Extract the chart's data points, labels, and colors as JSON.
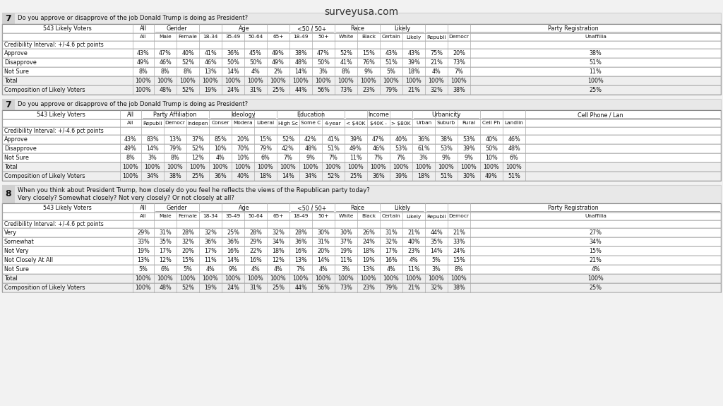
{
  "title": "surveyusa.com",
  "bg_color": "#f2f2f2",
  "q7_top_question": "Do you approve or disapprove of the job Donald Trump is doing as President?",
  "q7_top_data": {
    "headers_group": [
      "543 Likely Voters",
      "All",
      "Gender",
      "Age",
      "<50 / 50+",
      "Race",
      "Likely",
      "Party Registration"
    ],
    "headers_sub": [
      "",
      "All",
      "Male",
      "Female",
      "18-34",
      "35-49",
      "50-64",
      "65+",
      "18-49",
      "50+",
      "White",
      "Black",
      "Certain",
      "Likely",
      "Republi",
      "Democr",
      "Unaffilia"
    ],
    "credibility": "Credibility Interval: +/-4.6 pct points",
    "rows": {
      "Approve": [
        "43%",
        "47%",
        "40%",
        "41%",
        "36%",
        "45%",
        "49%",
        "38%",
        "47%",
        "52%",
        "15%",
        "43%",
        "43%",
        "75%",
        "20%",
        "38%"
      ],
      "Disapprove": [
        "49%",
        "46%",
        "52%",
        "46%",
        "50%",
        "50%",
        "49%",
        "48%",
        "50%",
        "41%",
        "76%",
        "51%",
        "39%",
        "21%",
        "73%",
        "51%"
      ],
      "Not Sure": [
        "8%",
        "8%",
        "8%",
        "13%",
        "14%",
        "4%",
        "2%",
        "14%",
        "3%",
        "8%",
        "9%",
        "5%",
        "18%",
        "4%",
        "7%",
        "11%"
      ],
      "Total": [
        "100%",
        "100%",
        "100%",
        "100%",
        "100%",
        "100%",
        "100%",
        "100%",
        "100%",
        "100%",
        "100%",
        "100%",
        "100%",
        "100%",
        "100%",
        "100%"
      ],
      "Composition of Likely Voters": [
        "100%",
        "48%",
        "52%",
        "19%",
        "24%",
        "31%",
        "25%",
        "44%",
        "56%",
        "73%",
        "23%",
        "79%",
        "21%",
        "32%",
        "38%",
        "25%"
      ]
    }
  },
  "q7_bot_question": "Do you approve or disapprove of the job Donald Trump is doing as President?",
  "q7_bot_data": {
    "headers_group": [
      "543 Likely Voters",
      "All",
      "Party Affiliation",
      "Ideology",
      "Education",
      "Income",
      "Urbanicity",
      "Cell Phone / Lan"
    ],
    "headers_sub": [
      "",
      "All",
      "Republi",
      "Democr",
      "Indepen",
      "Conser",
      "Modera",
      "Liberal",
      "High Sc",
      "Some C",
      "4-year",
      "< $40K",
      "$40K -",
      "> $80K",
      "Urban",
      "Suburb",
      "Rural",
      "Cell Ph",
      "Landlin"
    ],
    "credibility": "Credibility Interval: +/-4.6 pct points",
    "rows": {
      "Approve": [
        "43%",
        "83%",
        "13%",
        "37%",
        "85%",
        "20%",
        "15%",
        "52%",
        "42%",
        "41%",
        "39%",
        "47%",
        "40%",
        "36%",
        "38%",
        "53%",
        "40%",
        "46%"
      ],
      "Disapprove": [
        "49%",
        "14%",
        "79%",
        "52%",
        "10%",
        "70%",
        "79%",
        "42%",
        "48%",
        "51%",
        "49%",
        "46%",
        "53%",
        "61%",
        "53%",
        "39%",
        "50%",
        "48%"
      ],
      "Not Sure": [
        "8%",
        "3%",
        "8%",
        "12%",
        "4%",
        "10%",
        "6%",
        "7%",
        "9%",
        "7%",
        "11%",
        "7%",
        "7%",
        "3%",
        "9%",
        "9%",
        "10%",
        "6%"
      ],
      "Total": [
        "100%",
        "100%",
        "100%",
        "100%",
        "100%",
        "100%",
        "100%",
        "100%",
        "100%",
        "100%",
        "100%",
        "100%",
        "100%",
        "100%",
        "100%",
        "100%",
        "100%",
        "100%"
      ],
      "Composition of Likely Voters": [
        "100%",
        "34%",
        "38%",
        "25%",
        "36%",
        "40%",
        "18%",
        "14%",
        "34%",
        "52%",
        "25%",
        "36%",
        "39%",
        "18%",
        "51%",
        "30%",
        "49%",
        "51%"
      ]
    }
  },
  "q8_question": "When you think about President Trump, how closely do you feel he reflects the views of the Republican party today? Very closely? Somewhat closely? Not very closely? Or not closely at all?",
  "q8_data": {
    "headers_group": [
      "543 Likely Voters",
      "All",
      "Gender",
      "Age",
      "<50 / 50+",
      "Race",
      "Likely",
      "Party Registration"
    ],
    "headers_sub": [
      "",
      "All",
      "Male",
      "Female",
      "18-34",
      "35-49",
      "50-64",
      "65+",
      "18-49",
      "50+",
      "White",
      "Black",
      "Certain",
      "Likely",
      "Republi",
      "Democr",
      "Unaffilia"
    ],
    "credibility": "Credibility Interval: +/-4.6 pct points",
    "rows": {
      "Very": [
        "29%",
        "31%",
        "28%",
        "32%",
        "25%",
        "28%",
        "32%",
        "28%",
        "30%",
        "30%",
        "26%",
        "31%",
        "21%",
        "44%",
        "21%",
        "27%"
      ],
      "Somewhat": [
        "33%",
        "35%",
        "32%",
        "36%",
        "36%",
        "29%",
        "34%",
        "36%",
        "31%",
        "37%",
        "24%",
        "32%",
        "40%",
        "35%",
        "33%",
        "34%"
      ],
      "Not Very": [
        "19%",
        "17%",
        "20%",
        "17%",
        "16%",
        "22%",
        "18%",
        "16%",
        "20%",
        "19%",
        "18%",
        "17%",
        "23%",
        "14%",
        "24%",
        "15%"
      ],
      "Not Closely At All": [
        "13%",
        "12%",
        "15%",
        "11%",
        "14%",
        "16%",
        "12%",
        "13%",
        "14%",
        "11%",
        "19%",
        "16%",
        "4%",
        "5%",
        "15%",
        "21%"
      ],
      "Not Sure": [
        "5%",
        "6%",
        "5%",
        "4%",
        "9%",
        "4%",
        "4%",
        "7%",
        "4%",
        "3%",
        "13%",
        "4%",
        "11%",
        "3%",
        "8%",
        "4%"
      ],
      "Total": [
        "100%",
        "100%",
        "100%",
        "100%",
        "100%",
        "100%",
        "100%",
        "100%",
        "100%",
        "100%",
        "100%",
        "100%",
        "100%",
        "100%",
        "100%",
        "100%"
      ],
      "Composition of Likely Voters": [
        "100%",
        "48%",
        "52%",
        "19%",
        "24%",
        "31%",
        "25%",
        "44%",
        "56%",
        "73%",
        "23%",
        "79%",
        "21%",
        "32%",
        "38%",
        "25%"
      ]
    }
  }
}
